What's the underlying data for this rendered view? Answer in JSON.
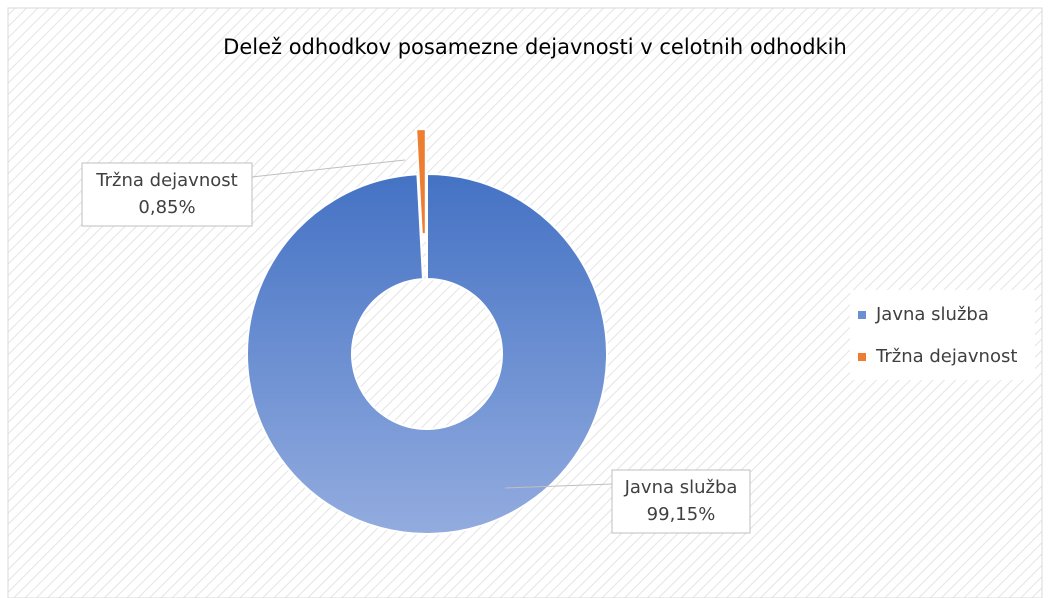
{
  "chart_data": {
    "type": "donut",
    "title": "Delež odhodkov posamezne dejavnosti v celotnih odhodkih",
    "categories": [
      "Javna služba",
      "Tržna dejavnost"
    ],
    "values": [
      99.15,
      0.85
    ],
    "value_labels": [
      "99,15%",
      "0,85%"
    ],
    "colors": [
      "#4472c4",
      "#ed7d31"
    ],
    "legend": "right"
  }
}
